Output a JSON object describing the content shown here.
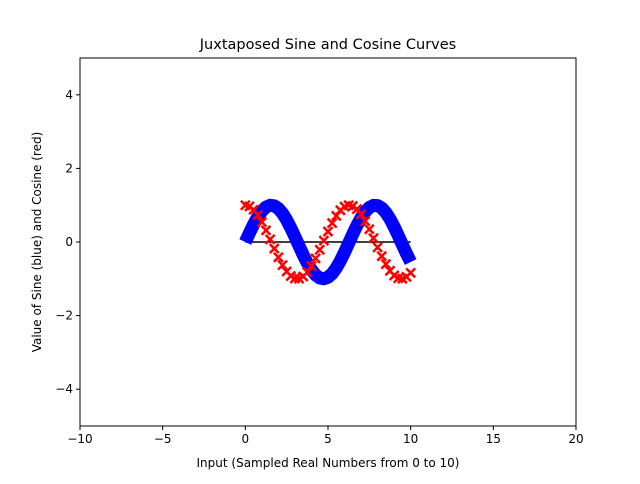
{
  "chart_data": {
    "type": "line",
    "title": "Juxtaposed Sine and Cosine Curves",
    "xlabel": "Input (Sampled Real Numbers from 0 to 10)",
    "ylabel": "Value of Sine (blue) and Cosine (red)",
    "xlim": [
      -10,
      20
    ],
    "ylim": [
      -5,
      5
    ],
    "xticks": [
      -10,
      -5,
      0,
      5,
      10,
      15,
      20
    ],
    "yticks": [
      -4,
      -2,
      0,
      2,
      4
    ],
    "xtick_labels": [
      "−10",
      "−5",
      "0",
      "5",
      "10",
      "15",
      "20"
    ],
    "ytick_labels": [
      "−4",
      "−2",
      "0",
      "2",
      "4"
    ],
    "grid": false,
    "legend": "none",
    "x_range": [
      0,
      10
    ],
    "samples": 41,
    "series": [
      {
        "function": "sin",
        "color": "#0000ff",
        "style": "thick solid line"
      },
      {
        "function": "cos",
        "color": "#ff0000",
        "style": "x markers"
      },
      {
        "function": "zero",
        "color": "#000000",
        "style": "thin line",
        "values": [
          0,
          0
        ]
      }
    ]
  }
}
